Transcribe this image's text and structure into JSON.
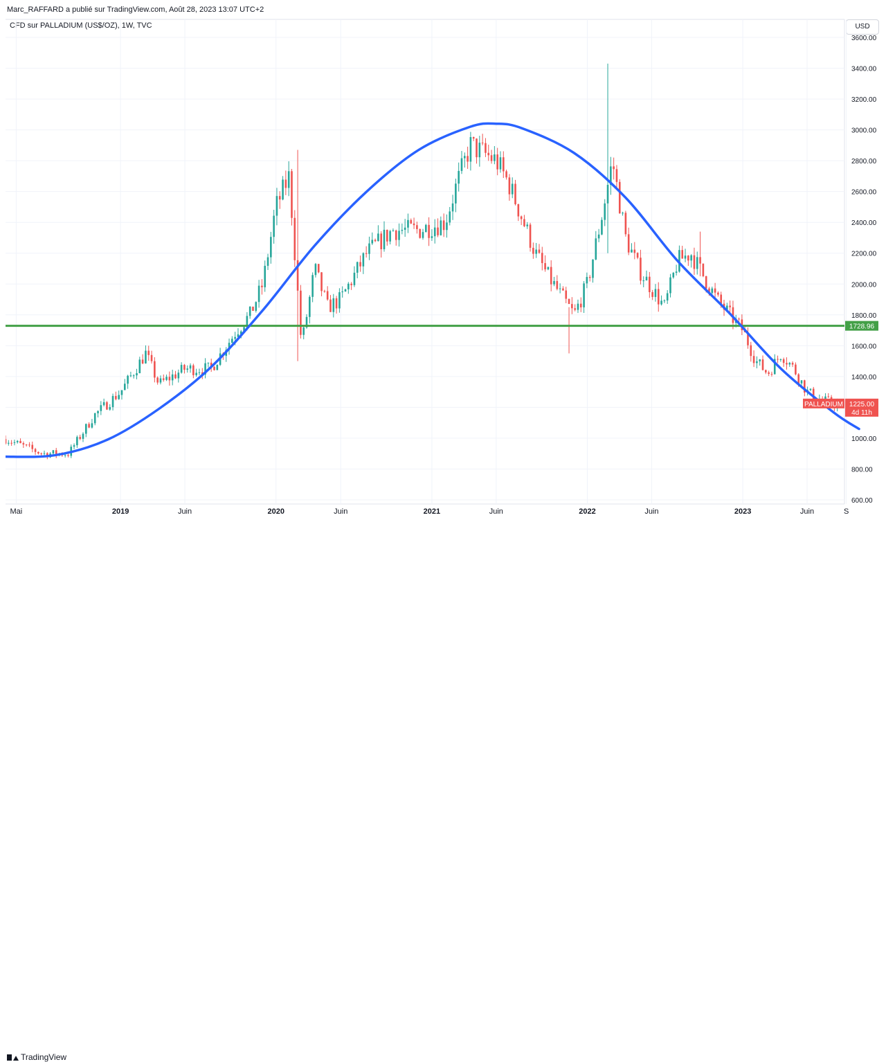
{
  "header": {
    "publisher_line": "Marc_RAFFARD a publié sur TradingView.com, Août 28, 2023 13:07 UTC+2",
    "symbol_info": "CFD sur PALLADIUM (US$/OZ), 1W, TVC",
    "currency_button": "USD"
  },
  "price_tags": {
    "horizontal_level": "1728.96",
    "symbol_label": "PALLADIUM",
    "last_price": "1225.00",
    "countdown": "4d 11h"
  },
  "footer": {
    "brand": "TradingView"
  },
  "colors": {
    "up": "#26a69a",
    "down": "#ef5350",
    "curve": "#2962ff",
    "level": "#43a047",
    "grid": "#f0f3fa",
    "axis_text": "#131722"
  },
  "chart_data": {
    "type": "candlestick",
    "ylim": [
      600,
      3600
    ],
    "y_ticks": [
      600,
      800,
      1000,
      1200,
      1400,
      1600,
      1800,
      2000,
      2200,
      2400,
      2600,
      2800,
      3000,
      3200,
      3400,
      3600
    ],
    "y_tick_labels": [
      "600.00",
      "800.00",
      "1000.00",
      "1200.00",
      "1400.00",
      "1600.00",
      "1800.00",
      "2000.00",
      "2200.00",
      "2400.00",
      "2600.00",
      "2800.00",
      "3000.00",
      "3200.00",
      "3400.00",
      "3600.00"
    ],
    "x_ticks": [
      {
        "label": "Mai",
        "date": "2018-05"
      },
      {
        "label": "2019",
        "date": "2019-01"
      },
      {
        "label": "Juin",
        "date": "2019-06"
      },
      {
        "label": "2020",
        "date": "2020-01"
      },
      {
        "label": "Juin",
        "date": "2020-06"
      },
      {
        "label": "2021",
        "date": "2021-01"
      },
      {
        "label": "Juin",
        "date": "2021-06"
      },
      {
        "label": "2022",
        "date": "2022-01"
      },
      {
        "label": "Juin",
        "date": "2022-06"
      },
      {
        "label": "2023",
        "date": "2023-01"
      },
      {
        "label": "Juin",
        "date": "2023-06"
      },
      {
        "label": "S",
        "date": "2023-09"
      }
    ],
    "horizontal_level": 1728.96,
    "last_price": 1225.0,
    "price_path": [
      [
        "2018-04",
        1000
      ],
      [
        "2018-07",
        900
      ],
      [
        "2018-09",
        900
      ],
      [
        "2018-11",
        1150
      ],
      [
        "2019-01",
        1300
      ],
      [
        "2019-03",
        1550
      ],
      [
        "2019-04",
        1350
      ],
      [
        "2019-06",
        1450
      ],
      [
        "2019-08",
        1450
      ],
      [
        "2019-10",
        1700
      ],
      [
        "2019-11",
        1800
      ],
      [
        "2019-12",
        2000
      ],
      [
        "2020-01",
        2500
      ],
      [
        "2020-02",
        2700
      ],
      [
        "2020-03",
        1600
      ],
      [
        "2020-04",
        2100
      ],
      [
        "2020-05",
        1850
      ],
      [
        "2020-06",
        1900
      ],
      [
        "2020-08",
        2200
      ],
      [
        "2020-10",
        2350
      ],
      [
        "2020-12",
        2350
      ],
      [
        "2021-02",
        2400
      ],
      [
        "2021-03",
        2650
      ],
      [
        "2021-04",
        2900
      ],
      [
        "2021-05",
        2850
      ],
      [
        "2021-06",
        2800
      ],
      [
        "2021-07",
        2650
      ],
      [
        "2021-09",
        2200
      ],
      [
        "2021-10",
        2050
      ],
      [
        "2021-12",
        1800
      ],
      [
        "2022-01",
        2000
      ],
      [
        "2022-02",
        2400
      ],
      [
        "2022-03",
        2800
      ],
      [
        "2022-04",
        2300
      ],
      [
        "2022-05",
        2100
      ],
      [
        "2022-07",
        1850
      ],
      [
        "2022-08",
        2150
      ],
      [
        "2022-09",
        2200
      ],
      [
        "2022-10",
        2050
      ],
      [
        "2022-11",
        1900
      ],
      [
        "2023-01",
        1700
      ],
      [
        "2023-02",
        1500
      ],
      [
        "2023-03",
        1420
      ],
      [
        "2023-04",
        1550
      ],
      [
        "2023-05",
        1450
      ],
      [
        "2023-06",
        1300
      ],
      [
        "2023-07",
        1250
      ],
      [
        "2023-08",
        1225
      ]
    ],
    "wicks": [
      {
        "date": "2020-03",
        "high": 2870,
        "low": 1500
      },
      {
        "date": "2022-03",
        "high": 3430,
        "low": 2200
      },
      {
        "date": "2021-12",
        "high": 1850,
        "low": 1550
      },
      {
        "date": "2022-10",
        "high": 2340,
        "low": 2050
      }
    ],
    "trend_curve": [
      [
        "2018-04",
        880
      ],
      [
        "2018-08",
        890
      ],
      [
        "2018-12",
        990
      ],
      [
        "2019-04",
        1190
      ],
      [
        "2019-08",
        1460
      ],
      [
        "2019-12",
        1830
      ],
      [
        "2020-04",
        2250
      ],
      [
        "2020-08",
        2600
      ],
      [
        "2020-12",
        2870
      ],
      [
        "2021-04",
        3020
      ],
      [
        "2021-06",
        3040
      ],
      [
        "2021-08",
        3010
      ],
      [
        "2021-12",
        2850
      ],
      [
        "2022-04",
        2560
      ],
      [
        "2022-08",
        2150
      ],
      [
        "2022-12",
        1810
      ],
      [
        "2023-04",
        1450
      ],
      [
        "2023-08",
        1170
      ],
      [
        "2023-10",
        1060
      ]
    ]
  }
}
